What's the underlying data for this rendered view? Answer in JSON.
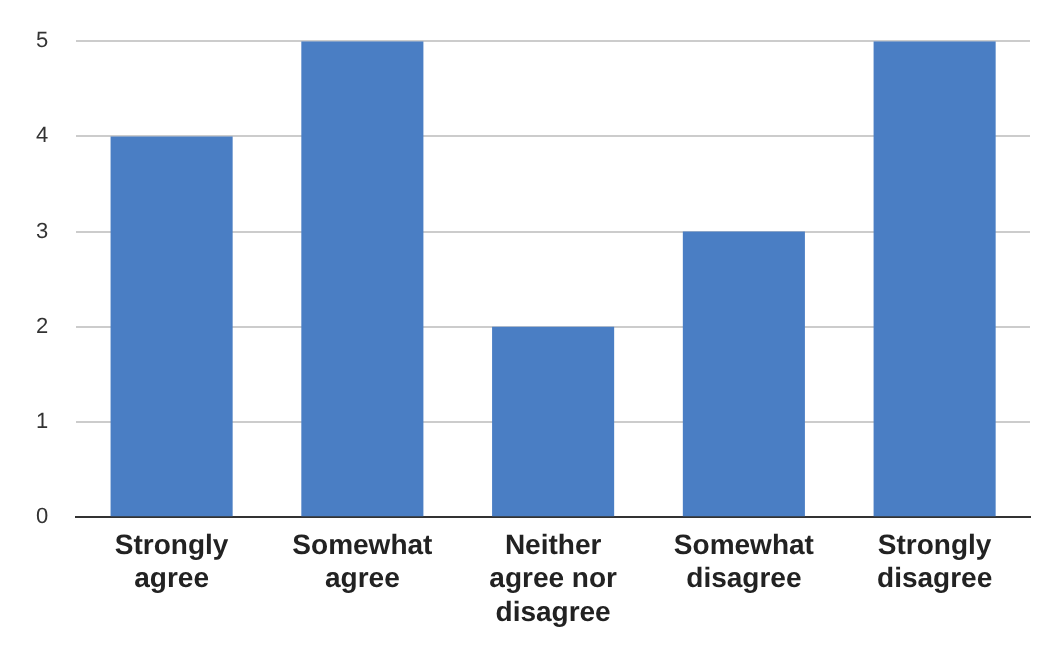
{
  "chart_data": {
    "type": "bar",
    "categories": [
      "Strongly agree",
      "Somewhat agree",
      "Neither agree nor disagree",
      "Somewhat disagree",
      "Strongly disagree"
    ],
    "values": [
      4,
      5,
      2,
      3,
      5
    ],
    "color": "#4a7ec4",
    "ylim": [
      0,
      5
    ],
    "yticks": [
      0,
      1,
      2,
      3,
      4,
      5
    ],
    "grid": "y",
    "legend": false
  }
}
